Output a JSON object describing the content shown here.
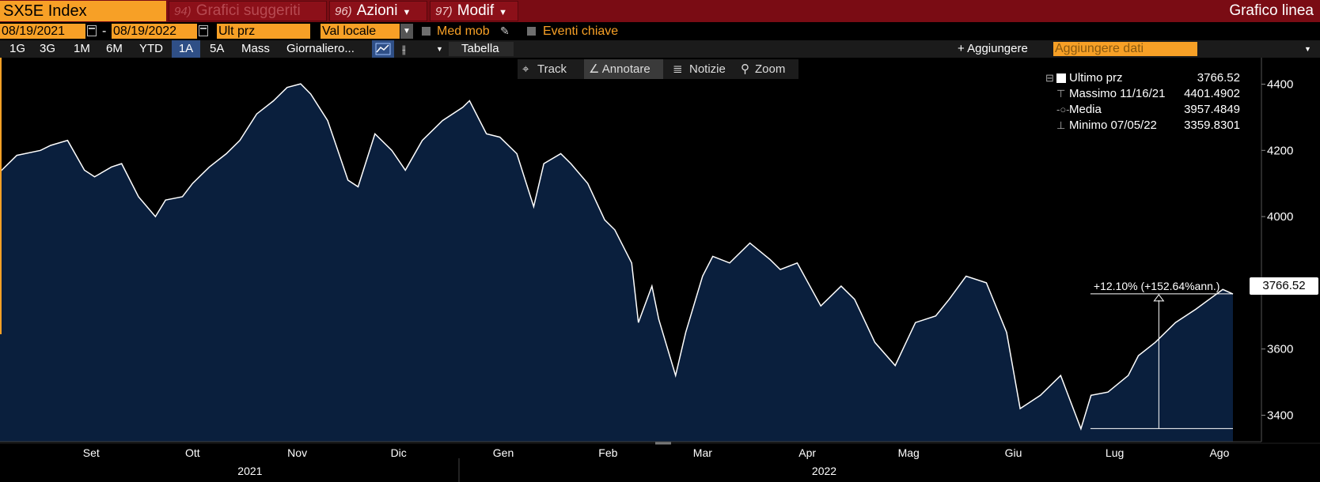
{
  "header": {
    "ticker": "SX5E Index",
    "suggested": {
      "num": "94)",
      "label": "Grafici suggeriti"
    },
    "azioni": {
      "num": "96)",
      "label": "Azioni"
    },
    "modif": {
      "num": "97)",
      "label": "Modif"
    },
    "title": "Grafico linea"
  },
  "settings": {
    "start_date": "08/19/2021",
    "dash": "-",
    "end_date": "08/19/2022",
    "price_field": "Ult prz",
    "currency": "Val locale",
    "moving_avg": "Med mob",
    "key_events": "Eventi chiave"
  },
  "toolbar": {
    "ranges": [
      "1G",
      "3G",
      "1M",
      "6M",
      "YTD",
      "1A",
      "5A"
    ],
    "selected_range": "1A",
    "mass": "Mass",
    "frequency": "Giornaliero...",
    "table": "Tabella",
    "add": "+ Aggiungere",
    "add_data_placeholder": "Aggiungere dati"
  },
  "chart_tools": {
    "track": "Track",
    "annotate": "Annotare",
    "news": "Notizie",
    "zoom": "Zoom"
  },
  "legend": {
    "last": {
      "label": "Ultimo prz",
      "value": "3766.52"
    },
    "high": {
      "label": "Massimo 11/16/21",
      "value": "4401.4902"
    },
    "mean": {
      "label": "Media",
      "value": "3957.4849"
    },
    "low": {
      "label": "Minimo 07/05/22",
      "value": "3359.8301"
    }
  },
  "colors": {
    "header_bg": "#7a0c14",
    "accent": "#f7a026",
    "area_fill": "#0a1f3d",
    "line": "#ffffff"
  },
  "chart_data": {
    "type": "area",
    "series": [
      {
        "name": "SX5E Index",
        "x": [
          "2021-08-19",
          "2021-08-24",
          "2021-08-31",
          "2021-09-03",
          "2021-09-08",
          "2021-09-13",
          "2021-09-16",
          "2021-09-21",
          "2021-09-24",
          "2021-09-29",
          "2021-10-04",
          "2021-10-07",
          "2021-10-12",
          "2021-10-15",
          "2021-10-20",
          "2021-10-25",
          "2021-10-29",
          "2021-11-03",
          "2021-11-08",
          "2021-11-12",
          "2021-11-16",
          "2021-11-19",
          "2021-11-24",
          "2021-11-26",
          "2021-11-30",
          "2021-12-03",
          "2021-12-08",
          "2021-12-13",
          "2021-12-17",
          "2021-12-22",
          "2021-12-28",
          "2022-01-03",
          "2022-01-05",
          "2022-01-10",
          "2022-01-14",
          "2022-01-19",
          "2022-01-24",
          "2022-01-27",
          "2022-02-01",
          "2022-02-04",
          "2022-02-09",
          "2022-02-14",
          "2022-02-17",
          "2022-02-22",
          "2022-02-24",
          "2022-02-28",
          "2022-03-02",
          "2022-03-07",
          "2022-03-10",
          "2022-03-15",
          "2022-03-18",
          "2022-03-23",
          "2022-03-29",
          "2022-04-04",
          "2022-04-07",
          "2022-04-12",
          "2022-04-19",
          "2022-04-25",
          "2022-04-29",
          "2022-05-05",
          "2022-05-11",
          "2022-05-17",
          "2022-05-23",
          "2022-05-27",
          "2022-06-01",
          "2022-06-07",
          "2022-06-13",
          "2022-06-17",
          "2022-06-23",
          "2022-06-29",
          "2022-07-05",
          "2022-07-08",
          "2022-07-13",
          "2022-07-19",
          "2022-07-22",
          "2022-07-27",
          "2022-08-02",
          "2022-08-08",
          "2022-08-12",
          "2022-08-16",
          "2022-08-19"
        ],
        "values": [
          4135,
          4185,
          4200,
          4215,
          4230,
          4140,
          4120,
          4150,
          4160,
          4060,
          4000,
          4050,
          4060,
          4100,
          4150,
          4190,
          4230,
          4310,
          4350,
          4390,
          4401,
          4370,
          4290,
          4230,
          4110,
          4090,
          4250,
          4200,
          4140,
          4230,
          4290,
          4330,
          4350,
          4250,
          4240,
          4190,
          4030,
          4160,
          4190,
          4160,
          4100,
          3990,
          3960,
          3860,
          3680,
          3790,
          3690,
          3520,
          3650,
          3820,
          3880,
          3860,
          3920,
          3870,
          3840,
          3860,
          3730,
          3790,
          3750,
          3620,
          3550,
          3680,
          3700,
          3750,
          3820,
          3800,
          3650,
          3420,
          3460,
          3520,
          3359,
          3460,
          3470,
          3520,
          3580,
          3620,
          3680,
          3720,
          3750,
          3780,
          3766
        ]
      }
    ],
    "ylim": [
      3320,
      4480
    ],
    "yticks": [
      3400,
      3600,
      3800,
      4000,
      4200,
      4400
    ],
    "xticks": [
      {
        "date": "2021-09-15",
        "label": "Set"
      },
      {
        "date": "2021-10-15",
        "label": "Ott"
      },
      {
        "date": "2021-11-15",
        "label": "Nov"
      },
      {
        "date": "2021-12-15",
        "label": "Dic"
      },
      {
        "date": "2022-01-15",
        "label": "Gen"
      },
      {
        "date": "2022-02-15",
        "label": "Feb"
      },
      {
        "date": "2022-03-15",
        "label": "Mar"
      },
      {
        "date": "2022-04-15",
        "label": "Apr"
      },
      {
        "date": "2022-05-15",
        "label": "Mag"
      },
      {
        "date": "2022-06-15",
        "label": "Giu"
      },
      {
        "date": "2022-07-15",
        "label": "Lug"
      },
      {
        "date": "2022-08-15",
        "label": "Ago"
      }
    ],
    "years": [
      {
        "date": "2021-11-01",
        "label": "2021"
      },
      {
        "date": "2022-04-20",
        "label": "2022"
      }
    ],
    "annotation": {
      "label": "+12.10% (+152.64%ann.)",
      "from_date": "2022-07-05",
      "from_value": 3359.83,
      "to_date": "2022-08-19",
      "to_value": 3766.52
    },
    "last_value_label": "3766.52",
    "grid": false
  }
}
